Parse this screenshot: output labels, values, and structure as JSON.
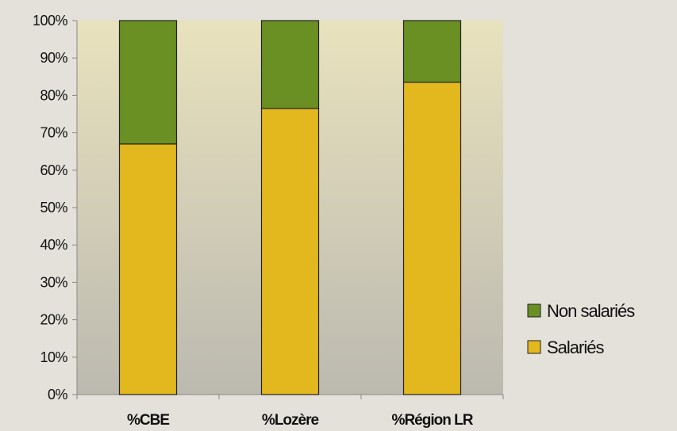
{
  "chart_data": {
    "type": "bar",
    "stacked": true,
    "percent": true,
    "title": "",
    "xlabel": "",
    "ylabel": "",
    "categories": [
      "%CBE",
      "%Lozère",
      "%Région LR"
    ],
    "series": [
      {
        "name": "Salariés",
        "values": [
          67,
          76.5,
          83.5
        ],
        "color": "#e3b81f"
      },
      {
        "name": "Non salariés",
        "values": [
          33,
          23.5,
          16.5
        ],
        "color": "#6a8f23"
      }
    ],
    "ylim": [
      0,
      100
    ],
    "yticks": [
      "0%",
      "10%",
      "20%",
      "30%",
      "40%",
      "50%",
      "60%",
      "70%",
      "80%",
      "90%",
      "100%"
    ],
    "grid": false,
    "legend_position": "right",
    "legend_order": [
      "Non salariés",
      "Salariés"
    ],
    "colors": {
      "page_background": "#e4e1da",
      "plot_gradient_top": "#e8e2bd",
      "plot_gradient_bottom": "#bcb9b0",
      "bar_border": "#222222"
    }
  }
}
